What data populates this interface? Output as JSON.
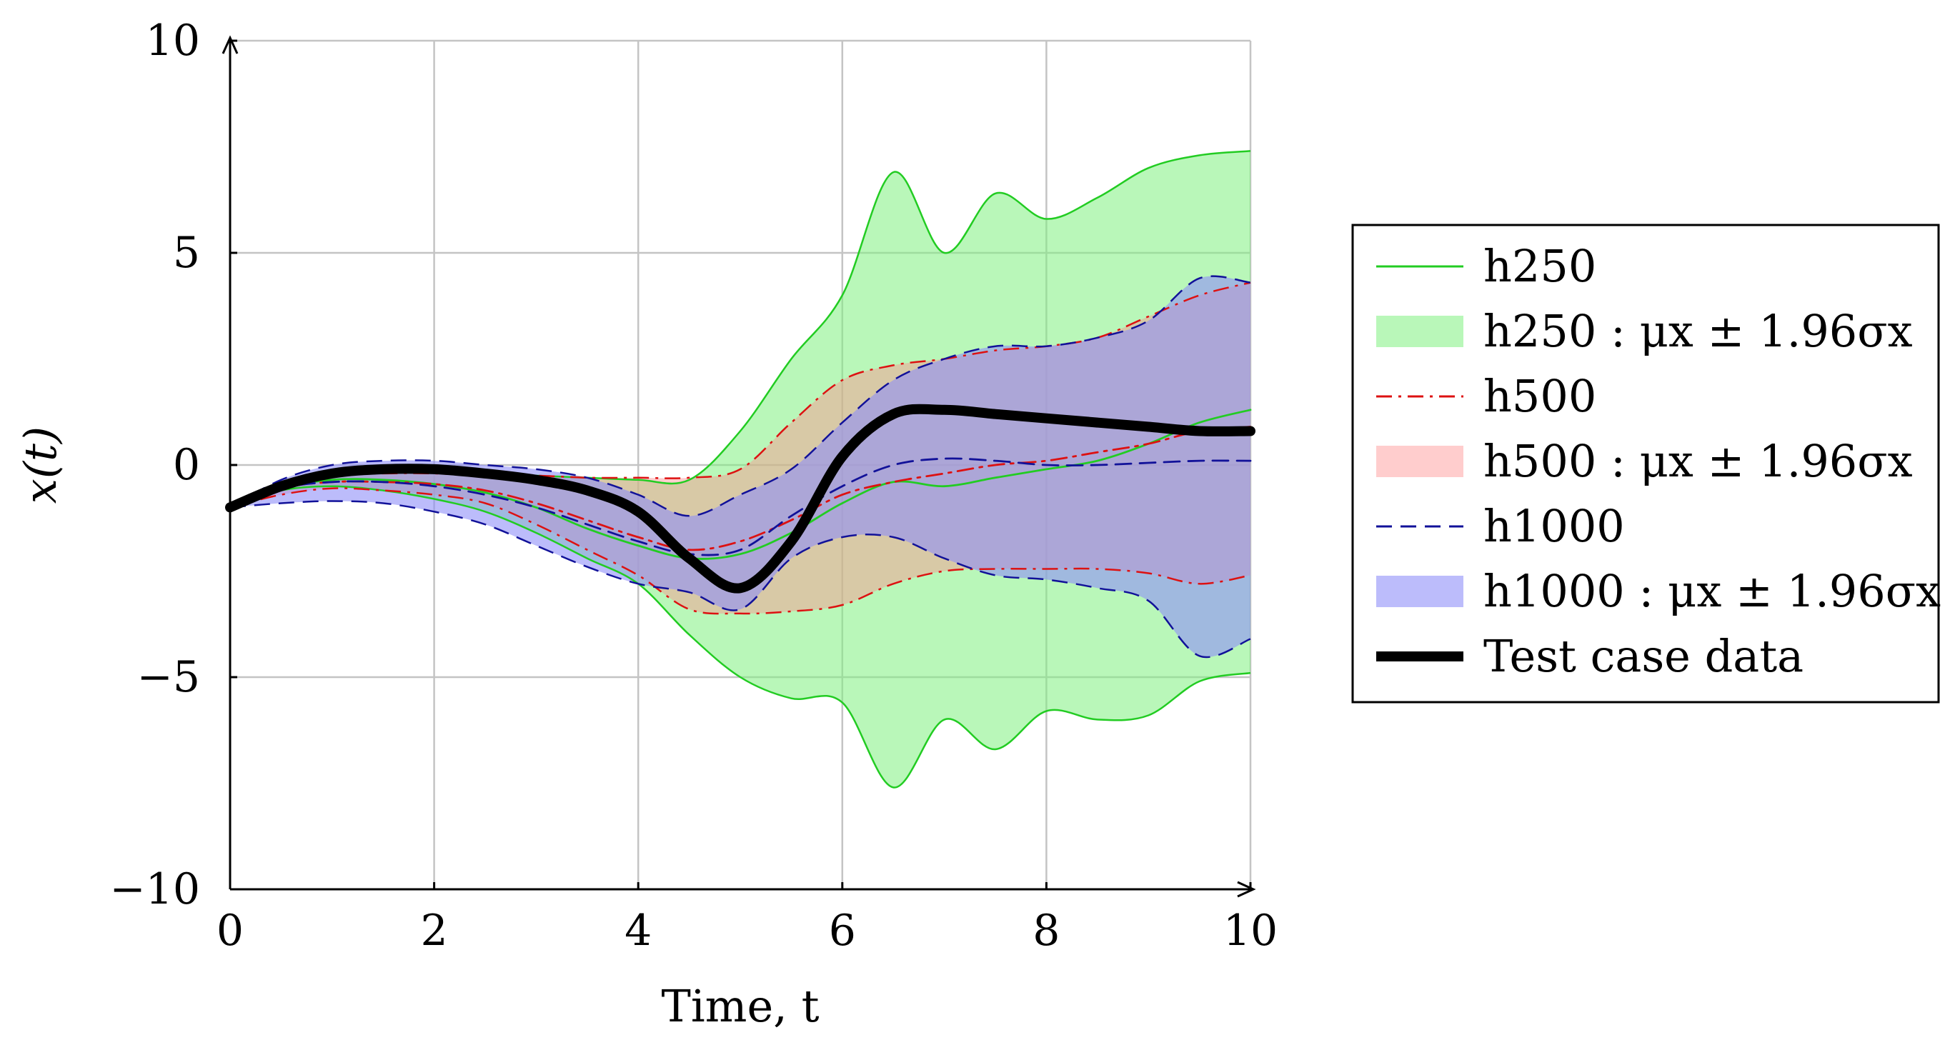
{
  "chart_data": {
    "type": "line",
    "title": "",
    "xlabel": "Time, t",
    "ylabel": "x(t)",
    "xlim": [
      0,
      10
    ],
    "ylim": [
      -10,
      10
    ],
    "x_ticks": [
      "0",
      "2",
      "4",
      "6",
      "8",
      "10"
    ],
    "y_ticks": [
      "10",
      "5",
      "0",
      "−5",
      "−10"
    ],
    "grid": true,
    "legend_position": "outside-right",
    "legend_entries": [
      "h250",
      "h250 : μx ± 1.96σx",
      "h500",
      "h500 : μx ± 1.96σx",
      "h1000",
      "h1000 : μx ± 1.96σx",
      "Test case data"
    ],
    "x": [
      0,
      0.5,
      1,
      1.5,
      2,
      2.5,
      3,
      3.5,
      4,
      4.5,
      5,
      5.5,
      6,
      6.5,
      7,
      7.5,
      8,
      8.5,
      9,
      9.5,
      10
    ],
    "bands": [
      {
        "legend_index": 1,
        "color": "#80f080",
        "opacity": 0.55,
        "upper": [
          -1.0,
          -0.45,
          -0.2,
          -0.15,
          -0.15,
          -0.2,
          -0.25,
          -0.3,
          -0.35,
          -0.35,
          0.8,
          2.5,
          4.0,
          6.9,
          5.0,
          6.4,
          5.8,
          6.3,
          7.0,
          7.3,
          7.4
        ],
        "lower": [
          -1.0,
          -0.6,
          -0.5,
          -0.6,
          -0.8,
          -1.1,
          -1.6,
          -2.2,
          -2.8,
          -4.0,
          -5.0,
          -5.5,
          -5.6,
          -7.6,
          -6.0,
          -6.7,
          -5.8,
          -6.0,
          -5.9,
          -5.1,
          -4.9
        ]
      },
      {
        "legend_index": 3,
        "color": "#ff9090",
        "opacity": 0.45,
        "upper": [
          -1.0,
          -0.5,
          -0.25,
          -0.2,
          -0.2,
          -0.25,
          -0.25,
          -0.3,
          -0.3,
          -0.3,
          -0.1,
          1.0,
          2.0,
          2.35,
          2.5,
          2.7,
          2.8,
          3.0,
          3.5,
          4.0,
          4.3
        ],
        "lower": [
          -1.0,
          -0.7,
          -0.55,
          -0.6,
          -0.7,
          -0.9,
          -1.4,
          -2.0,
          -2.6,
          -3.4,
          -3.5,
          -3.45,
          -3.3,
          -2.8,
          -2.5,
          -2.45,
          -2.45,
          -2.45,
          -2.55,
          -2.8,
          -2.6
        ]
      },
      {
        "legend_index": 5,
        "color": "#8f8ff8",
        "opacity": 0.6,
        "upper": [
          -1.0,
          -0.35,
          0.0,
          0.1,
          0.1,
          0.0,
          -0.1,
          -0.3,
          -0.7,
          -1.2,
          -0.7,
          -0.1,
          1.0,
          2.0,
          2.5,
          2.8,
          2.8,
          3.0,
          3.4,
          4.4,
          4.3
        ],
        "lower": [
          -1.0,
          -0.9,
          -0.85,
          -0.9,
          -1.1,
          -1.4,
          -1.9,
          -2.4,
          -2.8,
          -3.0,
          -3.4,
          -2.2,
          -1.7,
          -1.7,
          -2.2,
          -2.6,
          -2.7,
          -2.9,
          -3.2,
          -4.5,
          -4.1
        ]
      }
    ],
    "series": [
      {
        "name": "h250",
        "legend_index": 0,
        "color": "#22cc22",
        "dash": "solid",
        "values": [
          -1.0,
          -0.55,
          -0.35,
          -0.35,
          -0.45,
          -0.65,
          -1.0,
          -1.5,
          -1.9,
          -2.2,
          -2.1,
          -1.6,
          -0.9,
          -0.4,
          -0.5,
          -0.3,
          -0.1,
          0.1,
          0.5,
          1.0,
          1.3
        ]
      },
      {
        "name": "h500",
        "legend_index": 2,
        "color": "#dd1111",
        "dash": "dashdot",
        "values": [
          -1.0,
          -0.55,
          -0.4,
          -0.4,
          -0.45,
          -0.6,
          -0.9,
          -1.3,
          -1.7,
          -2.0,
          -1.8,
          -1.3,
          -0.7,
          -0.4,
          -0.2,
          0.0,
          0.1,
          0.3,
          0.5,
          0.8,
          0.9
        ]
      },
      {
        "name": "h1000",
        "legend_index": 4,
        "color": "#111199",
        "dash": "dashed",
        "values": [
          -1.0,
          -0.55,
          -0.4,
          -0.4,
          -0.5,
          -0.7,
          -1.0,
          -1.4,
          -1.8,
          -2.1,
          -2.0,
          -1.2,
          -0.5,
          0.0,
          0.15,
          0.1,
          0.0,
          0.0,
          0.05,
          0.1,
          0.1
        ]
      },
      {
        "name": "Test case data",
        "legend_index": 6,
        "color": "#000000",
        "dash": "solid",
        "thick": true,
        "values": [
          -1.0,
          -0.5,
          -0.2,
          -0.1,
          -0.1,
          -0.2,
          -0.35,
          -0.6,
          -1.1,
          -2.2,
          -2.9,
          -1.8,
          0.2,
          1.2,
          1.3,
          1.2,
          1.1,
          1.0,
          0.9,
          0.8,
          0.8
        ]
      }
    ]
  }
}
